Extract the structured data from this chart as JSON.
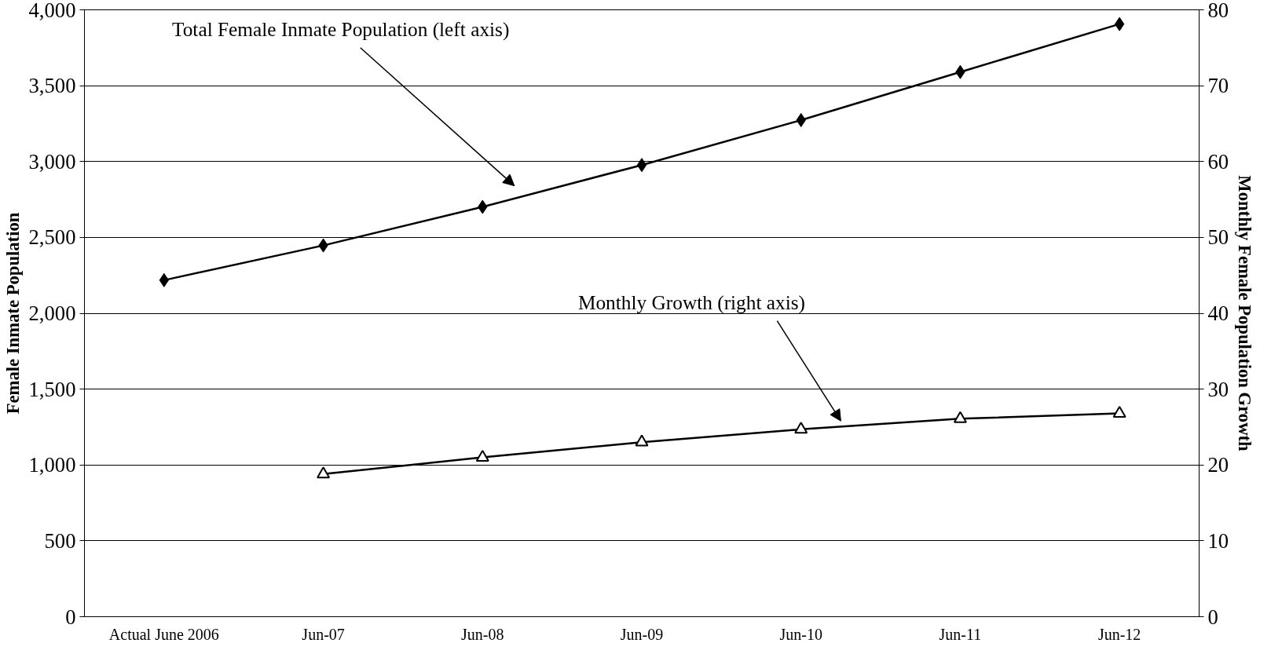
{
  "chart_data": {
    "type": "line",
    "ylabel": "Female Inmate Population",
    "y2label": "Monthly Female Population Growth",
    "categories": [
      "Actual June 2006",
      "Jun-07",
      "Jun-08",
      "Jun-09",
      "Jun-10",
      "Jun-11",
      "Jun-12"
    ],
    "series": [
      {
        "color": "#000000",
        "marker": "diamond",
        "values": [
          2218,
          2447,
          2701,
          2977,
          3273,
          3590,
          3906
        ]
      },
      {
        "color": "#000000",
        "marker": "triangle",
        "axis": "y2",
        "values": [
          null,
          18.8,
          21.0,
          23.0,
          24.7,
          26.1,
          26.8
        ]
      }
    ],
    "ylim": [
      0,
      4000
    ],
    "yticks": [
      {
        "value": 0,
        "label": "0"
      },
      {
        "value": 500,
        "label": "500"
      },
      {
        "value": 1000,
        "label": "1,000"
      },
      {
        "value": 1500,
        "label": "1,500"
      },
      {
        "value": 2000,
        "label": "2,000"
      },
      {
        "value": 2500,
        "label": "2,500"
      },
      {
        "value": 3000,
        "label": "3,000"
      },
      {
        "value": 3500,
        "label": "3,500"
      },
      {
        "value": 4000,
        "label": "4,000"
      }
    ],
    "y2lim": [
      0,
      80
    ],
    "y2ticks": [
      0,
      10,
      20,
      30,
      40,
      50,
      60,
      70,
      80
    ],
    "grid": "y",
    "line_style": "solid",
    "annotations": [
      "Total Female Inmate Population (left axis)",
      "Monthly Growth  (right axis)"
    ]
  }
}
